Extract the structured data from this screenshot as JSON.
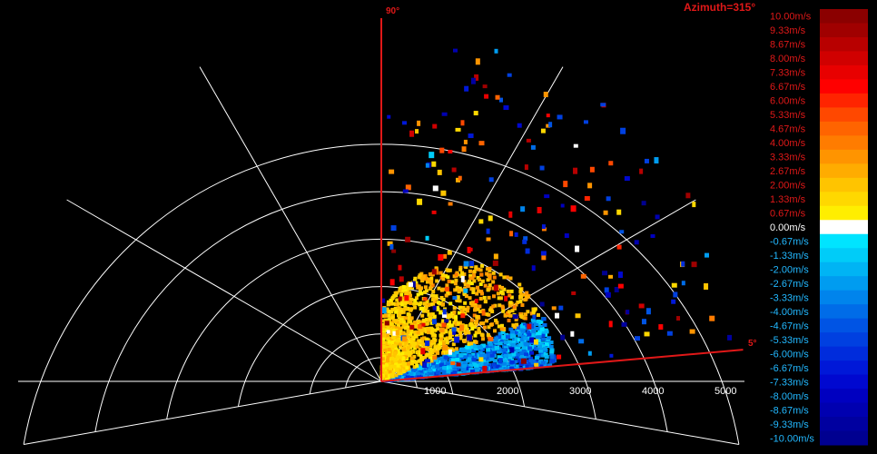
{
  "title": "Azimuth=315°",
  "chart_data": {
    "type": "heatmap",
    "title": "Azimuth=315°",
    "projection": "polar-half (range vs elevation)",
    "range_ticks": [
      "1000",
      "2000",
      "3000",
      "4000",
      "5000"
    ],
    "range_max": 5000,
    "elevation_min_label": "5°",
    "elevation_max_label": "90°",
    "elevation_min_deg": 5,
    "elevation_max_deg": 90,
    "grid_spoke_step_deg": 30,
    "grid": true,
    "legend_position": "right",
    "colorbar": [
      {
        "label": "10.00m/s",
        "value": 10.0,
        "color": "#8b0000"
      },
      {
        "label": "9.33m/s",
        "value": 9.33,
        "color": "#a00000"
      },
      {
        "label": "8.67m/s",
        "value": 8.67,
        "color": "#b80000"
      },
      {
        "label": "8.00m/s",
        "value": 8.0,
        "color": "#d00000"
      },
      {
        "label": "7.33m/s",
        "value": 7.33,
        "color": "#e80000"
      },
      {
        "label": "6.67m/s",
        "value": 6.67,
        "color": "#ff0000"
      },
      {
        "label": "6.00m/s",
        "value": 6.0,
        "color": "#ff2400"
      },
      {
        "label": "5.33m/s",
        "value": 5.33,
        "color": "#ff4800"
      },
      {
        "label": "4.67m/s",
        "value": 4.67,
        "color": "#ff6400"
      },
      {
        "label": "4.00m/s",
        "value": 4.0,
        "color": "#ff7c00"
      },
      {
        "label": "3.33m/s",
        "value": 3.33,
        "color": "#ff9400"
      },
      {
        "label": "2.67m/s",
        "value": 2.67,
        "color": "#ffac00"
      },
      {
        "label": "2.00m/s",
        "value": 2.0,
        "color": "#ffc400"
      },
      {
        "label": "1.33m/s",
        "value": 1.33,
        "color": "#ffd800"
      },
      {
        "label": "0.67m/s",
        "value": 0.67,
        "color": "#ffee00"
      },
      {
        "label": "0.00m/s",
        "value": 0.0,
        "color": "#ffffff"
      },
      {
        "label": "-0.67m/s",
        "value": -0.67,
        "color": "#00e4ff"
      },
      {
        "label": "-1.33m/s",
        "value": -1.33,
        "color": "#00ccf8"
      },
      {
        "label": "-2.00m/s",
        "value": -2.0,
        "color": "#00b4f4"
      },
      {
        "label": "-2.67m/s",
        "value": -2.67,
        "color": "#009cf0"
      },
      {
        "label": "-3.33m/s",
        "value": -3.33,
        "color": "#0084ec"
      },
      {
        "label": "-4.00m/s",
        "value": -4.0,
        "color": "#006ce8"
      },
      {
        "label": "-4.67m/s",
        "value": -4.67,
        "color": "#0054e4"
      },
      {
        "label": "-5.33m/s",
        "value": -5.33,
        "color": "#0040e0"
      },
      {
        "label": "-6.00m/s",
        "value": -6.0,
        "color": "#002cdc"
      },
      {
        "label": "-6.67m/s",
        "value": -6.67,
        "color": "#0018d8"
      },
      {
        "label": "-7.33m/s",
        "value": -7.33,
        "color": "#0008d0"
      },
      {
        "label": "-8.00m/s",
        "value": -8.0,
        "color": "#0000c0"
      },
      {
        "label": "-8.67m/s",
        "value": -8.67,
        "color": "#0000b0"
      },
      {
        "label": "-9.33m/s",
        "value": -9.33,
        "color": "#0000a0"
      },
      {
        "label": "-10.00m/s",
        "value": -10.0,
        "color": "#000090"
      }
    ],
    "data_summary": [
      {
        "region": "dense yellow/orange echoes",
        "range_min": 0,
        "range_max": 2100,
        "elev_min_deg": 22,
        "elev_max_deg": 88,
        "velocity_range": [
          0.67,
          3.33
        ]
      },
      {
        "region": "dense light/medium blue echoes",
        "range_min": 0,
        "range_max": 2400,
        "elev_min_deg": 5,
        "elev_max_deg": 22,
        "velocity_range": [
          -5.33,
          -0.67
        ]
      },
      {
        "region": "sparse scattered echoes",
        "range_min": 300,
        "range_max": 5000,
        "elev_min_deg": 5,
        "elev_max_deg": 90,
        "velocity_range": [
          -10.0,
          10.0
        ]
      }
    ]
  }
}
